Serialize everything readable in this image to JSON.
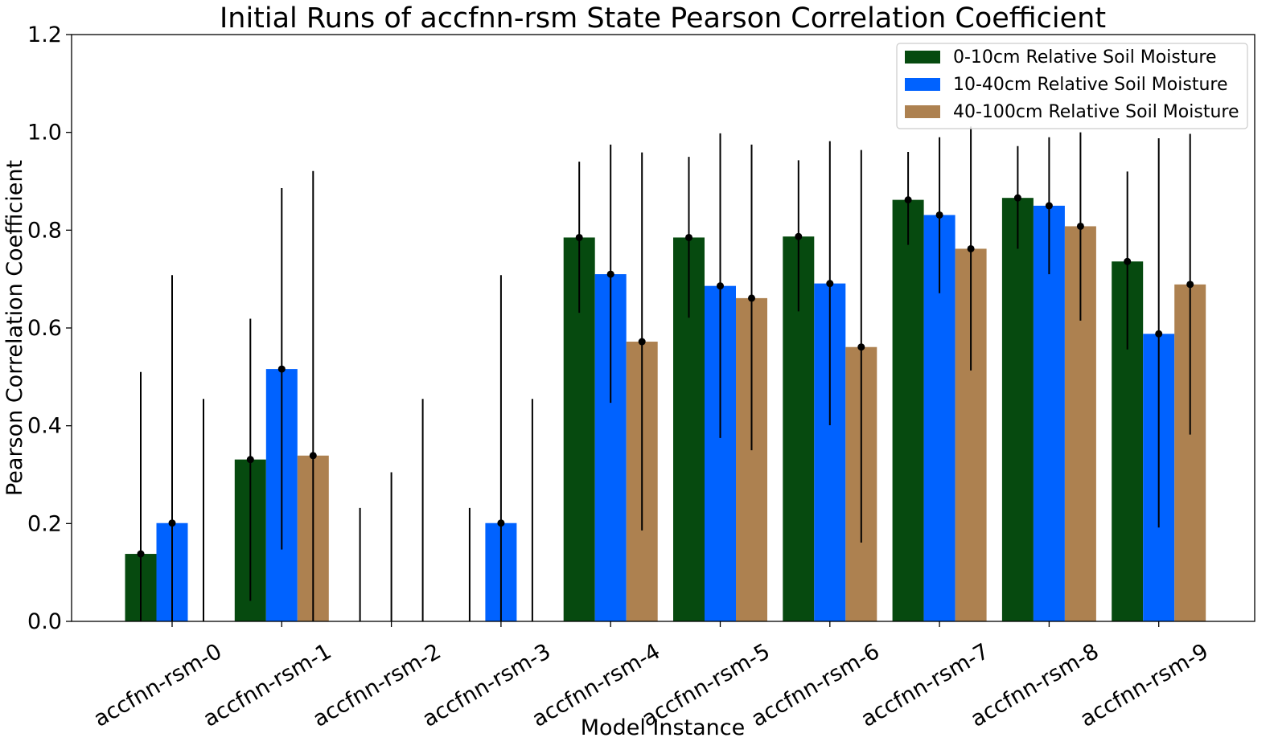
{
  "chart_data": {
    "type": "bar",
    "title": "Initial Runs of accfnn-rsm State Pearson Correlation Coefficient",
    "xlabel": "Model Instance",
    "ylabel": "Pearson Correlation Coefficient",
    "ylim": [
      0,
      1.2
    ],
    "yticks": [
      "0.0",
      "0.2",
      "0.4",
      "0.6",
      "0.8",
      "1.0",
      "1.2"
    ],
    "grid": false,
    "legend_position": "top-right",
    "categories": [
      "accfnn-rsm-0",
      "accfnn-rsm-1",
      "accfnn-rsm-2",
      "accfnn-rsm-3",
      "accfnn-rsm-4",
      "accfnn-rsm-5",
      "accfnn-rsm-6",
      "accfnn-rsm-7",
      "accfnn-rsm-8",
      "accfnn-rsm-9"
    ],
    "series": [
      {
        "name": "0-10cm Relative Soil Moisture",
        "color": "#064a0f",
        "values": [
          0.138,
          0.331,
          0.0,
          0.0,
          0.785,
          0.785,
          0.787,
          0.862,
          0.866,
          0.736
        ],
        "err_low": [
          0.0,
          0.042,
          0.0,
          0.0,
          0.631,
          0.621,
          0.634,
          0.77,
          0.762,
          0.556
        ],
        "err_high": [
          0.51,
          0.619,
          0.232,
          0.232,
          0.94,
          0.95,
          0.943,
          0.96,
          0.972,
          0.92
        ]
      },
      {
        "name": "10-40cm Relative Soil Moisture",
        "color": "#0062ff",
        "values": [
          0.201,
          0.516,
          0.0,
          0.201,
          0.71,
          0.686,
          0.691,
          0.831,
          0.85,
          0.588
        ],
        "err_low": [
          0.0,
          0.147,
          0.0,
          0.0,
          0.447,
          0.375,
          0.401,
          0.671,
          0.71,
          0.192
        ],
        "err_high": [
          0.708,
          0.886,
          0.305,
          0.708,
          0.975,
          0.998,
          0.982,
          0.99,
          0.99,
          0.988
        ]
      },
      {
        "name": "40-100cm Relative Soil Moisture",
        "color": "#ad8150",
        "values": [
          0.0,
          0.339,
          0.0,
          0.0,
          0.572,
          0.661,
          0.561,
          0.762,
          0.808,
          0.689
        ],
        "err_low": [
          0.0,
          0.0,
          0.0,
          0.0,
          0.186,
          0.35,
          0.161,
          0.513,
          0.615,
          0.382
        ],
        "err_high": [
          0.455,
          0.921,
          0.455,
          0.455,
          0.959,
          0.975,
          0.964,
          1.012,
          1.0,
          0.997
        ]
      }
    ]
  }
}
